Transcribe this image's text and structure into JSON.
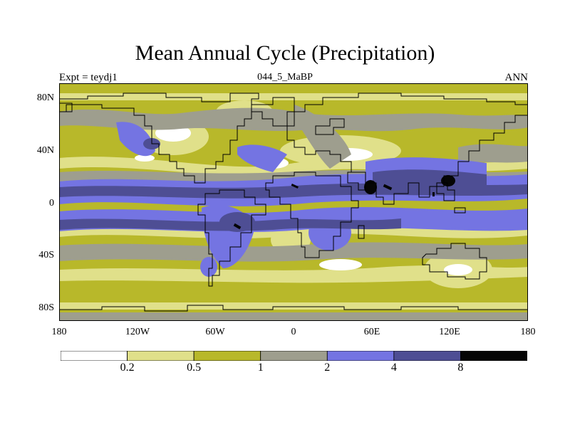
{
  "title": "Mean Annual Cycle (Precipitation)",
  "left_label": "Expt = teydj1",
  "center_label": "044_5_MaBP",
  "right_label": "ANN",
  "map": {
    "projection": "cylindrical equidistant",
    "lat_range": [
      -90,
      90
    ],
    "lon_range": [
      -180,
      180
    ],
    "y_ticks": [
      {
        "value": 80,
        "label": "80N"
      },
      {
        "value": 40,
        "label": "40N"
      },
      {
        "value": 0,
        "label": "0"
      },
      {
        "value": -40,
        "label": "40S"
      },
      {
        "value": -80,
        "label": "80S"
      }
    ],
    "x_ticks": [
      {
        "value": -180,
        "label": "180"
      },
      {
        "value": -120,
        "label": "120W"
      },
      {
        "value": -60,
        "label": "60W"
      },
      {
        "value": 0,
        "label": "0"
      },
      {
        "value": 60,
        "label": "60E"
      },
      {
        "value": 120,
        "label": "120E"
      },
      {
        "value": 180,
        "label": "180"
      }
    ]
  },
  "colorbar": {
    "levels": [
      "0.2",
      "0.5",
      "1",
      "2",
      "4",
      "8"
    ],
    "colors": [
      "#ffffff",
      "#e0e08a",
      "#b8b82a",
      "#9e9e8e",
      "#7474e2",
      "#4e4e94",
      "#050505"
    ]
  },
  "colors": {
    "white": "#ffffff",
    "pale_yellow": "#e0e08a",
    "olive": "#b8b82a",
    "gray": "#9e9e8e",
    "periwinkle": "#7474e2",
    "navy": "#4e4e94",
    "black": "#050505",
    "coastline": "#000000"
  }
}
